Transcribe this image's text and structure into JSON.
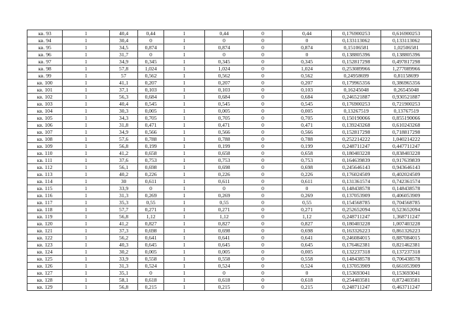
{
  "rows": [
    [
      "кв. 93",
      "1",
      "40,4",
      "0,44",
      "1",
      "0,44",
      "0",
      "0,44",
      "0,176900253",
      "0,616900253"
    ],
    [
      "кв. 94",
      "1",
      "30,4",
      "0",
      "1",
      "0",
      "0",
      "0",
      "0,133113062",
      "0,133113062"
    ],
    [
      "кв. 95",
      "1",
      "34,5",
      "0,874",
      "1",
      "0,874",
      "0",
      "0,874",
      "0,15106581",
      "1,02506581"
    ],
    [
      "кв. 96",
      "1",
      "31,7",
      "0",
      "1",
      "0",
      "0",
      "0",
      "0,138805396",
      "0,138805396"
    ],
    [
      "кв. 97",
      "1",
      "34,9",
      "0,345",
      "1",
      "0,345",
      "0",
      "0,345",
      "0,152817298",
      "0,497817298"
    ],
    [
      "кв. 98",
      "1",
      "57,8",
      "1,024",
      "1",
      "1,024",
      "0",
      "1,024",
      "0,253089966",
      "1,277089966"
    ],
    [
      "кв. 99",
      "1",
      "57",
      "0,562",
      "1",
      "0,562",
      "0",
      "0,562",
      "0,24958699",
      "0,81158699"
    ],
    [
      "кв. 100",
      "1",
      "41,1",
      "0,207",
      "1",
      "0,207",
      "0",
      "0,207",
      "0,179965356",
      "0,386965356"
    ],
    [
      "кв. 101",
      "1",
      "37,1",
      "0,103",
      "1",
      "0,103",
      "0",
      "0,103",
      "0,16245048",
      "0,26545048"
    ],
    [
      "кв. 102",
      "1",
      "56,3",
      "0,684",
      "1",
      "0,684",
      "0",
      "0,684",
      "0,246521887",
      "0,930521887"
    ],
    [
      "кв. 103",
      "1",
      "40,4",
      "0,545",
      "1",
      "0,545",
      "0",
      "0,545",
      "0,176900253",
      "0,721900253"
    ],
    [
      "кв. 104",
      "1",
      "30,3",
      "0,005",
      "1",
      "0,005",
      "0",
      "0,005",
      "0,13267519",
      "0,13767519"
    ],
    [
      "кв. 105",
      "1",
      "34,3",
      "0,705",
      "1",
      "0,705",
      "0",
      "0,705",
      "0,150190066",
      "0,855190066"
    ],
    [
      "кв. 106",
      "1",
      "31,8",
      "0,471",
      "1",
      "0,471",
      "0",
      "0,471",
      "0,139243268",
      "0,610243268"
    ],
    [
      "кв. 107",
      "1",
      "34,9",
      "0,566",
      "1",
      "0,566",
      "0",
      "0,566",
      "0,152817298",
      "0,718817298"
    ],
    [
      "кв. 108",
      "1",
      "57,6",
      "0,788",
      "1",
      "0,788",
      "0",
      "0,788",
      "0,252214222",
      "1,040214222"
    ],
    [
      "кв. 109",
      "1",
      "56,8",
      "0,199",
      "1",
      "0,199",
      "0",
      "0,199",
      "0,248711247",
      "0,447711247"
    ],
    [
      "кв. 110",
      "1",
      "41,2",
      "0,658",
      "1",
      "0,658",
      "0",
      "0,658",
      "0,180403228",
      "0,838403228"
    ],
    [
      "кв. 111",
      "1",
      "37,6",
      "0,753",
      "1",
      "0,753",
      "0",
      "0,753",
      "0,164639839",
      "0,917639839"
    ],
    [
      "кв. 112",
      "1",
      "56,1",
      "0,698",
      "1",
      "0,698",
      "0",
      "0,698",
      "0,245646143",
      "0,943646143"
    ],
    [
      "кв. 113",
      "1",
      "40,2",
      "0,226",
      "1",
      "0,226",
      "0",
      "0,226",
      "0,176024509",
      "0,402024509"
    ],
    [
      "кв. 114",
      "1",
      "30",
      "0,611",
      "1",
      "0,611",
      "0",
      "0,611",
      "0,131361574",
      "0,742361574"
    ],
    [
      "кв. 115",
      "1",
      "33,9",
      "0",
      "1",
      "0",
      "0",
      "0",
      "0,148438578",
      "0,148438578"
    ],
    [
      "кв. 116",
      "1",
      "31,3",
      "0,269",
      "1",
      "0,269",
      "0",
      "0,269",
      "0,137053909",
      "0,406053909"
    ],
    [
      "кв. 117",
      "1",
      "35,3",
      "0,55",
      "1",
      "0,55",
      "0",
      "0,55",
      "0,154568785",
      "0,704568785"
    ],
    [
      "кв. 118",
      "1",
      "57,7",
      "0,271",
      "1",
      "0,271",
      "0",
      "0,271",
      "0,252652094",
      "0,523652094"
    ],
    [
      "кв. 119",
      "1",
      "56,8",
      "1,12",
      "1",
      "1,12",
      "0",
      "1,12",
      "0,248711247",
      "1,368711247"
    ],
    [
      "кв. 120",
      "1",
      "41,2",
      "0,827",
      "1",
      "0,827",
      "0",
      "0,827",
      "0,180403228",
      "1,007403228"
    ],
    [
      "кв. 121",
      "1",
      "37,3",
      "0,698",
      "1",
      "0,698",
      "0",
      "0,698",
      "0,163326223",
      "0,861326223"
    ],
    [
      "кв. 122",
      "1",
      "56,2",
      "0,641",
      "1",
      "0,641",
      "0",
      "0,641",
      "0,246084015",
      "0,887084015"
    ],
    [
      "кв. 123",
      "1",
      "40,3",
      "0,645",
      "1",
      "0,645",
      "0",
      "0,645",
      "0,176462381",
      "0,821462381"
    ],
    [
      "кв. 124",
      "1",
      "30,2",
      "0,005",
      "1",
      "0,005",
      "0",
      "0,005",
      "0,132237318",
      "0,137237318"
    ],
    [
      "кв. 125",
      "1",
      "33,9",
      "0,558",
      "1",
      "0,558",
      "0",
      "0,558",
      "0,148438578",
      "0,706438578"
    ],
    [
      "кв. 126",
      "1",
      "31,3",
      "0,524",
      "1",
      "0,524",
      "0",
      "0,524",
      "0,137053909",
      "0,661053909"
    ],
    [
      "кв. 127",
      "1",
      "35,1",
      "0",
      "1",
      "0",
      "0",
      "0",
      "0,153693041",
      "0,153693041"
    ],
    [
      "кв. 128",
      "1",
      "58,1",
      "0,618",
      "1",
      "0,618",
      "0",
      "0,618",
      "0,254403581",
      "0,872403581"
    ],
    [
      "кв. 129",
      "1",
      "56,8",
      "0,215",
      "1",
      "0,215",
      "0",
      "0,215",
      "0,248711247",
      "0,463711247"
    ]
  ]
}
